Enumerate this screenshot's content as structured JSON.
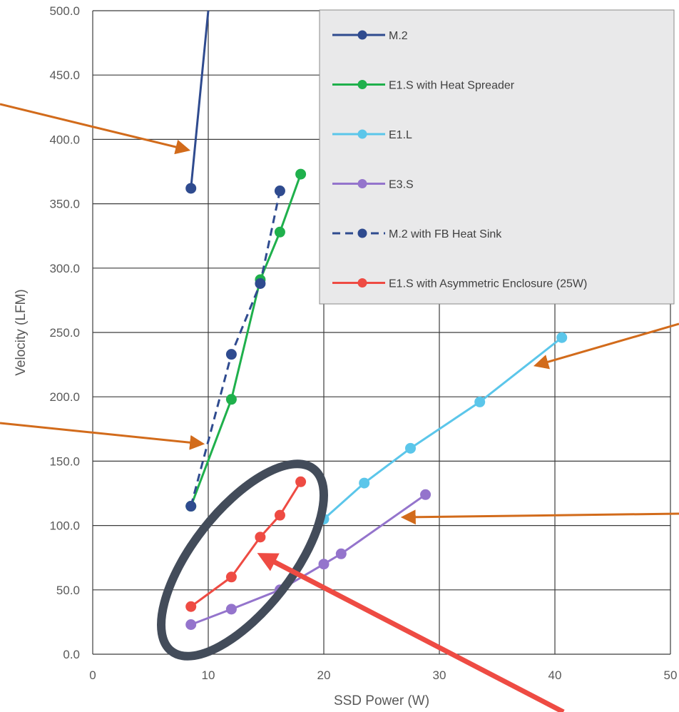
{
  "chart_data": {
    "type": "line",
    "xlabel": "SSD Power (W)",
    "ylabel": "Velocity (LFM)",
    "xlim": [
      0,
      50
    ],
    "ylim": [
      0,
      500
    ],
    "xticks": [
      "0",
      "10",
      "20",
      "30",
      "40",
      "50"
    ],
    "yticks": [
      "0.0",
      "50.0",
      "100.0",
      "150.0",
      "200.0",
      "250.0",
      "300.0",
      "350.0",
      "400.0",
      "450.0",
      "500.0"
    ],
    "grid": true,
    "legend_position": "top-right",
    "series": [
      {
        "name": "M.2",
        "color": "#2f4b8f",
        "dashed": false,
        "points": [
          [
            8.5,
            362
          ],
          [
            10,
            500
          ]
        ]
      },
      {
        "name": "E1.S with Heat Spreader",
        "color": "#1fb04c",
        "dashed": false,
        "points": [
          [
            8.5,
            115
          ],
          [
            12,
            198
          ],
          [
            14.5,
            291
          ],
          [
            16.2,
            328
          ],
          [
            18,
            373
          ]
        ]
      },
      {
        "name": "E1.L",
        "color": "#5bc6ea",
        "dashed": false,
        "points": [
          [
            20,
            105
          ],
          [
            23.5,
            133
          ],
          [
            27.5,
            160
          ],
          [
            33.5,
            196
          ],
          [
            40.6,
            246
          ]
        ]
      },
      {
        "name": "E3.S",
        "color": "#9474cc",
        "dashed": false,
        "points": [
          [
            8.5,
            23
          ],
          [
            12,
            35
          ],
          [
            16.2,
            50
          ],
          [
            20,
            70
          ],
          [
            21.5,
            78
          ],
          [
            28.8,
            124
          ]
        ]
      },
      {
        "name": "M.2 with FB Heat Sink",
        "color": "#2f4b8f",
        "dashed": true,
        "points": [
          [
            8.5,
            115
          ],
          [
            12,
            233
          ],
          [
            14.5,
            288
          ],
          [
            16.2,
            360
          ]
        ]
      },
      {
        "name": "E1.S with Asymmetric Enclosure (25W)",
        "color": "#ee4b43",
        "dashed": false,
        "points": [
          [
            8.5,
            37
          ],
          [
            12,
            60
          ],
          [
            14.5,
            91
          ],
          [
            16.2,
            108
          ],
          [
            18,
            134
          ]
        ]
      }
    ]
  },
  "annotations": {
    "arrow_color": "#d26b1b",
    "highlight_arrow_color": "#ee4b43",
    "ellipse_color": "#434c5a"
  }
}
